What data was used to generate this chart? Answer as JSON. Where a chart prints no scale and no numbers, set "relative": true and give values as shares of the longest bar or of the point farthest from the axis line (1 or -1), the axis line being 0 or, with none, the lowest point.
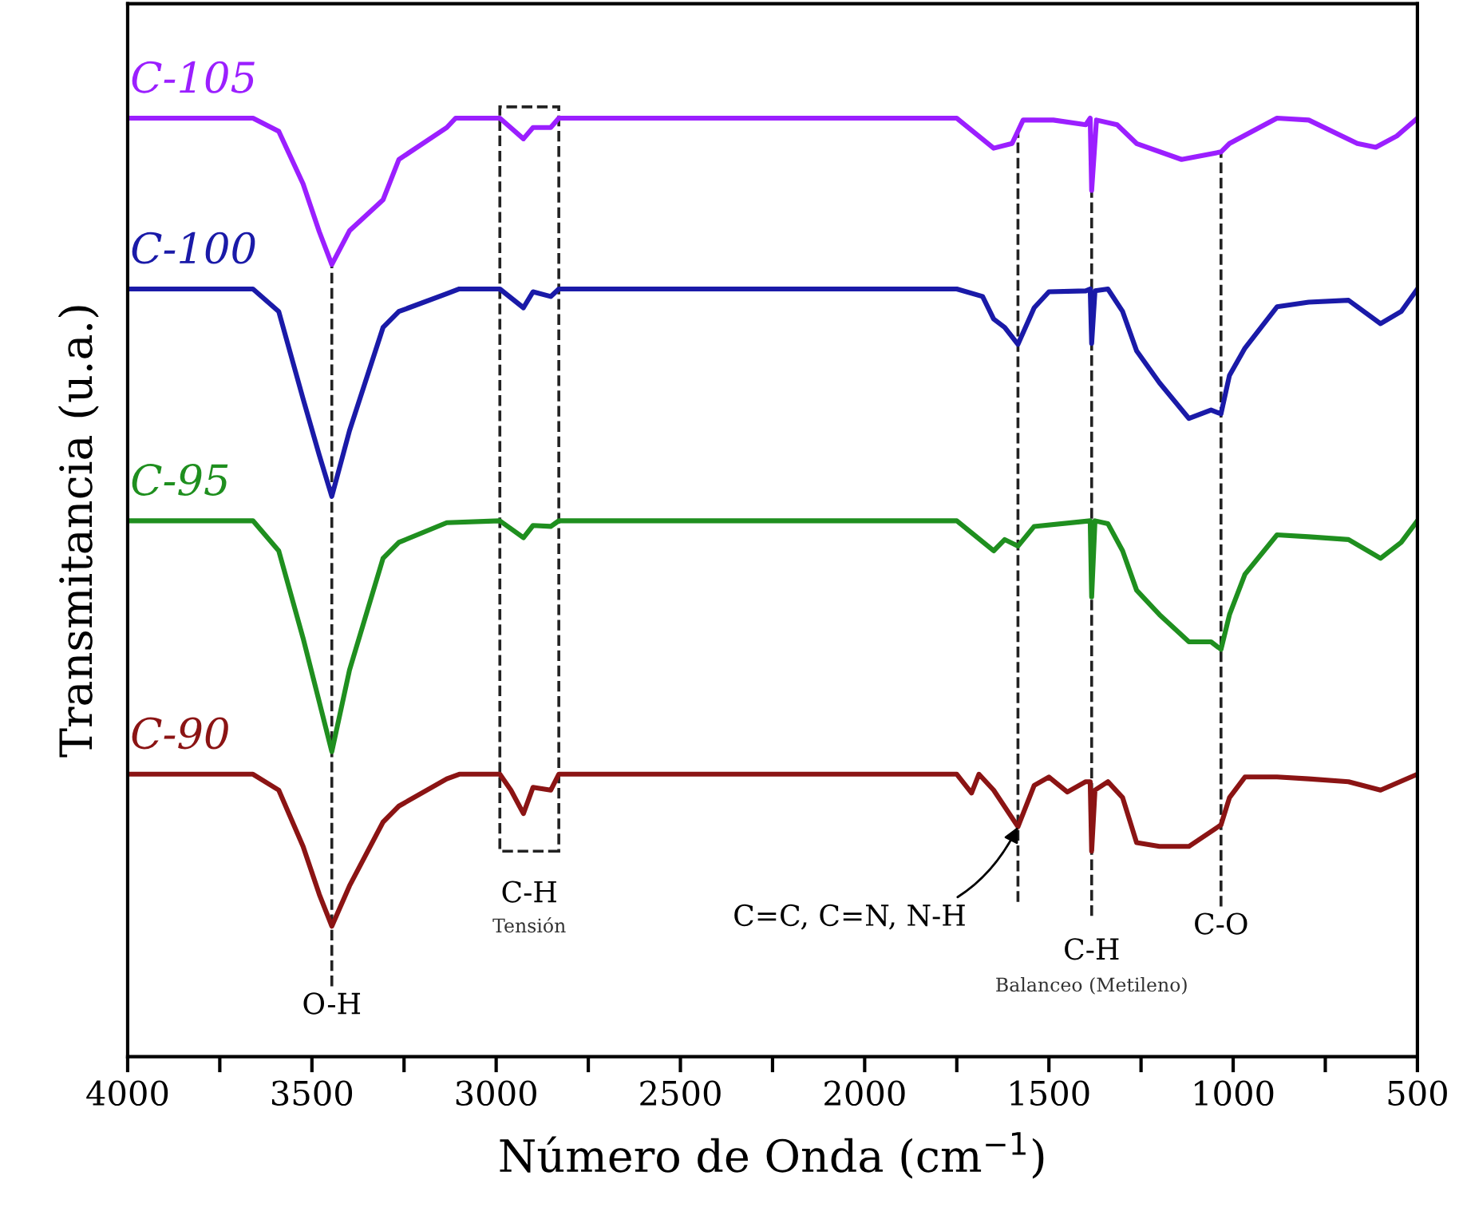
{
  "chart_data": {
    "type": "line",
    "relative": true,
    "xlabel": "Número de Onda (cm$^{−1}$)",
    "ylabel": "Transmitancia (u.a.)",
    "xlim": [
      4000,
      500
    ],
    "xticks": [
      4000,
      {
        "value": 3750,
        "label": null
      },
      3500,
      {
        "value": 3250,
        "label": null
      },
      3000,
      {
        "value": 2750,
        "label": null
      },
      2500,
      {
        "value": 2250,
        "label": null
      },
      2000,
      {
        "value": 1750,
        "label": null
      },
      1500,
      {
        "value": 1250,
        "label": null
      },
      1000,
      {
        "value": 750,
        "label": null
      },
      500
    ],
    "tick_labels": "x",
    "grid": false,
    "legend": false,
    "marker": "none",
    "line_style": "solid",
    "series": [
      {
        "name": "C-105",
        "color": "#9b1fff",
        "x": [
          4000,
          3660,
          3590,
          3524,
          3480,
          3446,
          3398,
          3307,
          3264,
          3134,
          3110,
          2990,
          2926,
          2900,
          2852,
          2830,
          1750,
          1650,
          1600,
          1570,
          1488,
          1400,
          1388,
          1384,
          1371,
          1315,
          1262,
          1140,
          1033,
          1010,
          881,
          795,
          663,
          613,
          556,
          500
        ],
        "values": [
          1.0,
          1.0,
          0.986,
          0.93,
          0.879,
          0.844,
          0.88,
          0.913,
          0.956,
          0.99,
          1.0,
          1.0,
          0.978,
          0.99,
          0.99,
          1.0,
          1.0,
          0.968,
          0.973,
          0.998,
          0.998,
          0.993,
          1.0,
          0.923,
          0.998,
          0.993,
          0.973,
          0.956,
          0.964,
          0.973,
          1.0,
          0.998,
          0.973,
          0.969,
          0.981,
          1.0
        ]
      },
      {
        "name": "C-100",
        "color": "#1a1aa8",
        "x": [
          4000,
          3660,
          3590,
          3524,
          3480,
          3446,
          3398,
          3307,
          3264,
          3134,
          3100,
          2990,
          2926,
          2900,
          2852,
          2830,
          1750,
          1680,
          1650,
          1620,
          1584,
          1540,
          1500,
          1400,
          1388,
          1384,
          1375,
          1340,
          1300,
          1262,
          1200,
          1120,
          1060,
          1033,
          1010,
          968,
          881,
          795,
          687,
          600,
          544,
          500
        ],
        "values": [
          0.818,
          0.818,
          0.794,
          0.701,
          0.641,
          0.597,
          0.667,
          0.777,
          0.794,
          0.813,
          0.818,
          0.818,
          0.798,
          0.815,
          0.81,
          0.818,
          0.818,
          0.81,
          0.786,
          0.777,
          0.759,
          0.798,
          0.815,
          0.816,
          0.818,
          0.76,
          0.816,
          0.818,
          0.794,
          0.752,
          0.718,
          0.68,
          0.689,
          0.685,
          0.726,
          0.755,
          0.799,
          0.804,
          0.806,
          0.781,
          0.794,
          0.818
        ]
      },
      {
        "name": "C-95",
        "color": "#1f8f1f",
        "x": [
          4000,
          3660,
          3590,
          3524,
          3480,
          3446,
          3398,
          3307,
          3264,
          3134,
          2990,
          2926,
          2900,
          2852,
          2830,
          1750,
          1650,
          1620,
          1584,
          1540,
          1388,
          1384,
          1375,
          1340,
          1300,
          1262,
          1200,
          1120,
          1060,
          1033,
          1010,
          968,
          881,
          795,
          687,
          600,
          544,
          500
        ],
        "values": [
          0.571,
          0.571,
          0.539,
          0.446,
          0.378,
          0.325,
          0.412,
          0.531,
          0.548,
          0.569,
          0.571,
          0.553,
          0.566,
          0.565,
          0.571,
          0.571,
          0.539,
          0.551,
          0.544,
          0.565,
          0.571,
          0.49,
          0.571,
          0.568,
          0.539,
          0.497,
          0.471,
          0.442,
          0.442,
          0.434,
          0.471,
          0.514,
          0.556,
          0.554,
          0.551,
          0.531,
          0.548,
          0.571
        ]
      },
      {
        "name": "C-90",
        "color": "#8b1414",
        "x": [
          4000,
          3660,
          3590,
          3524,
          3480,
          3446,
          3398,
          3307,
          3264,
          3134,
          3100,
          2990,
          2960,
          2926,
          2900,
          2852,
          2830,
          1750,
          1710,
          1690,
          1650,
          1584,
          1540,
          1500,
          1450,
          1400,
          1388,
          1384,
          1375,
          1340,
          1300,
          1262,
          1200,
          1120,
          1033,
          1010,
          968,
          881,
          795,
          687,
          600,
          500
        ],
        "values": [
          0.301,
          0.301,
          0.284,
          0.224,
          0.173,
          0.139,
          0.182,
          0.25,
          0.267,
          0.296,
          0.301,
          0.301,
          0.284,
          0.259,
          0.287,
          0.284,
          0.301,
          0.301,
          0.281,
          0.301,
          0.284,
          0.245,
          0.289,
          0.298,
          0.282,
          0.293,
          0.293,
          0.219,
          0.284,
          0.293,
          0.276,
          0.228,
          0.224,
          0.224,
          0.247,
          0.276,
          0.298,
          0.298,
          0.296,
          0.293,
          0.284,
          0.301
        ]
      }
    ],
    "ref_lines": [
      {
        "axis": "x",
        "value": 3446,
        "label": "O-H",
        "line_style": "dashed"
      },
      {
        "axis": "x",
        "value": 1584,
        "label": null,
        "line_style": "dashed"
      },
      {
        "axis": "x",
        "value": 1384,
        "label": "C-H",
        "line_style": "dashed"
      },
      {
        "axis": "x",
        "value": 1033,
        "label": "C-O",
        "line_style": "dashed"
      }
    ],
    "annotations": [
      "C-H",
      "Tensión",
      "Balanceo (Metileno)",
      {
        "text": "C=C, C=N, N-H",
        "x": 1584,
        "y": 0.245
      }
    ]
  }
}
